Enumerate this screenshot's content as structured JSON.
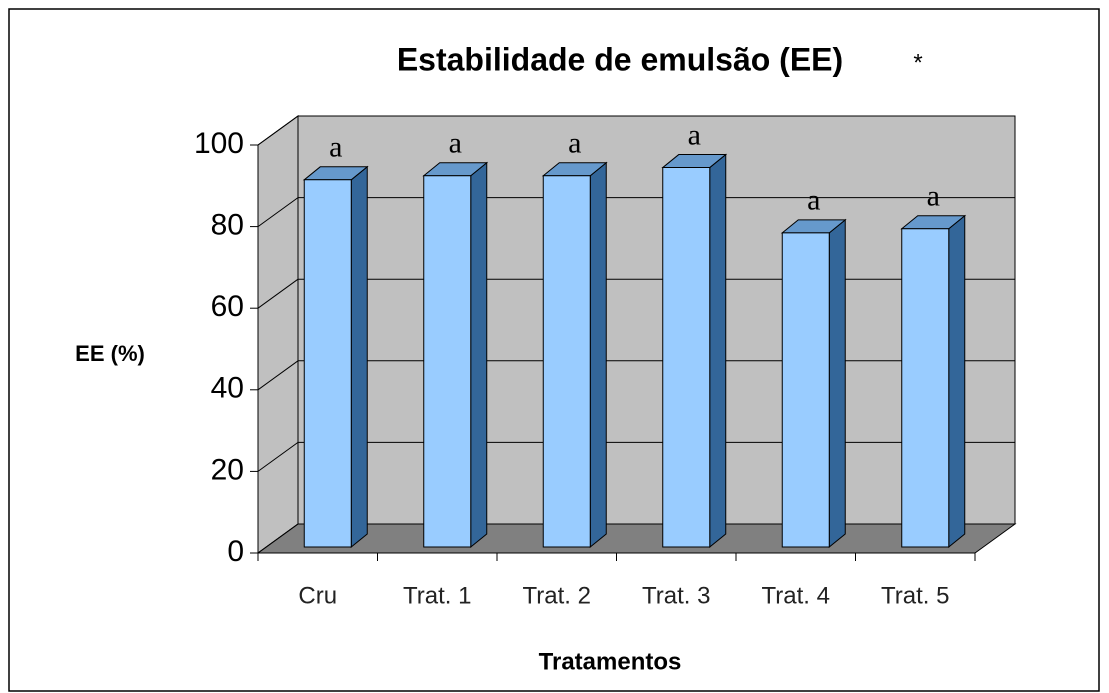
{
  "chart_data": {
    "type": "bar3d",
    "title": "Estabilidade de emulsão (EE)",
    "title_note": "*",
    "categories": [
      "Cru",
      "Trat. 1",
      "Trat. 2",
      "Trat. 3",
      "Trat. 4",
      "Trat. 5"
    ],
    "values": [
      90,
      91,
      91,
      93,
      77,
      78
    ],
    "annotations": [
      "a",
      "a",
      "a",
      "a",
      "a",
      "a"
    ],
    "color": "#99ccff",
    "ylim": [
      0,
      100
    ],
    "yticks": [
      0,
      20,
      40,
      60,
      80,
      100
    ],
    "grid": true,
    "x_label": "Tratamentos",
    "y_label": "EE (%)"
  }
}
